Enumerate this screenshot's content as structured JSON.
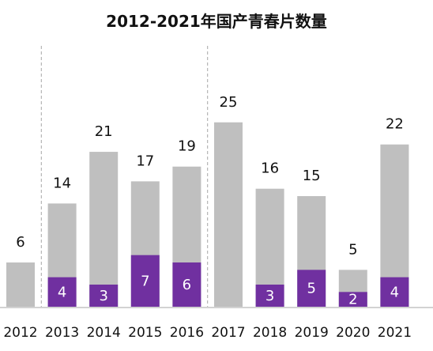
{
  "chart_data": {
    "type": "bar",
    "stacked": true,
    "title": "2012-2021年国产青春片数量",
    "categories": [
      "2012",
      "2013",
      "2014",
      "2015",
      "2016",
      "2017",
      "2018",
      "2019",
      "2020",
      "2021"
    ],
    "totals": [
      6,
      14,
      21,
      17,
      19,
      25,
      16,
      15,
      5,
      22
    ],
    "highlight": [
      null,
      4,
      3,
      7,
      6,
      null,
      3,
      5,
      2,
      4
    ],
    "ylim": [
      0,
      25
    ],
    "separators_after": [
      "2012",
      "2016"
    ],
    "grid": false,
    "legend": "none",
    "colors": {
      "total": "#bfbfbf",
      "highlight": "#7030a0",
      "separator": "#a6a6a6",
      "axis": "#a6a6a6"
    }
  }
}
